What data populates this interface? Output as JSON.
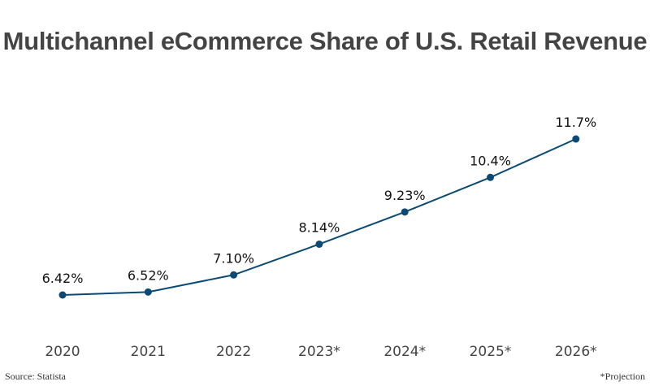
{
  "chart_data": {
    "type": "line",
    "title": "Multichannel eCommerce Share of U.S. Retail Revenue",
    "categories": [
      "2020",
      "2021",
      "2022",
      "2023*",
      "2024*",
      "2025*",
      "2026*"
    ],
    "values": [
      6.42,
      6.52,
      7.1,
      8.14,
      9.23,
      10.4,
      11.7
    ],
    "data_labels": [
      "6.42%",
      "6.52%",
      "7.10%",
      "8.14%",
      "9.23%",
      "10.4%",
      "11.7%"
    ],
    "xlabel": "",
    "ylabel": "",
    "grid": false,
    "line_color": "#0b4a75"
  },
  "footer": {
    "source": "Source: Statista",
    "note": "*Projection"
  }
}
